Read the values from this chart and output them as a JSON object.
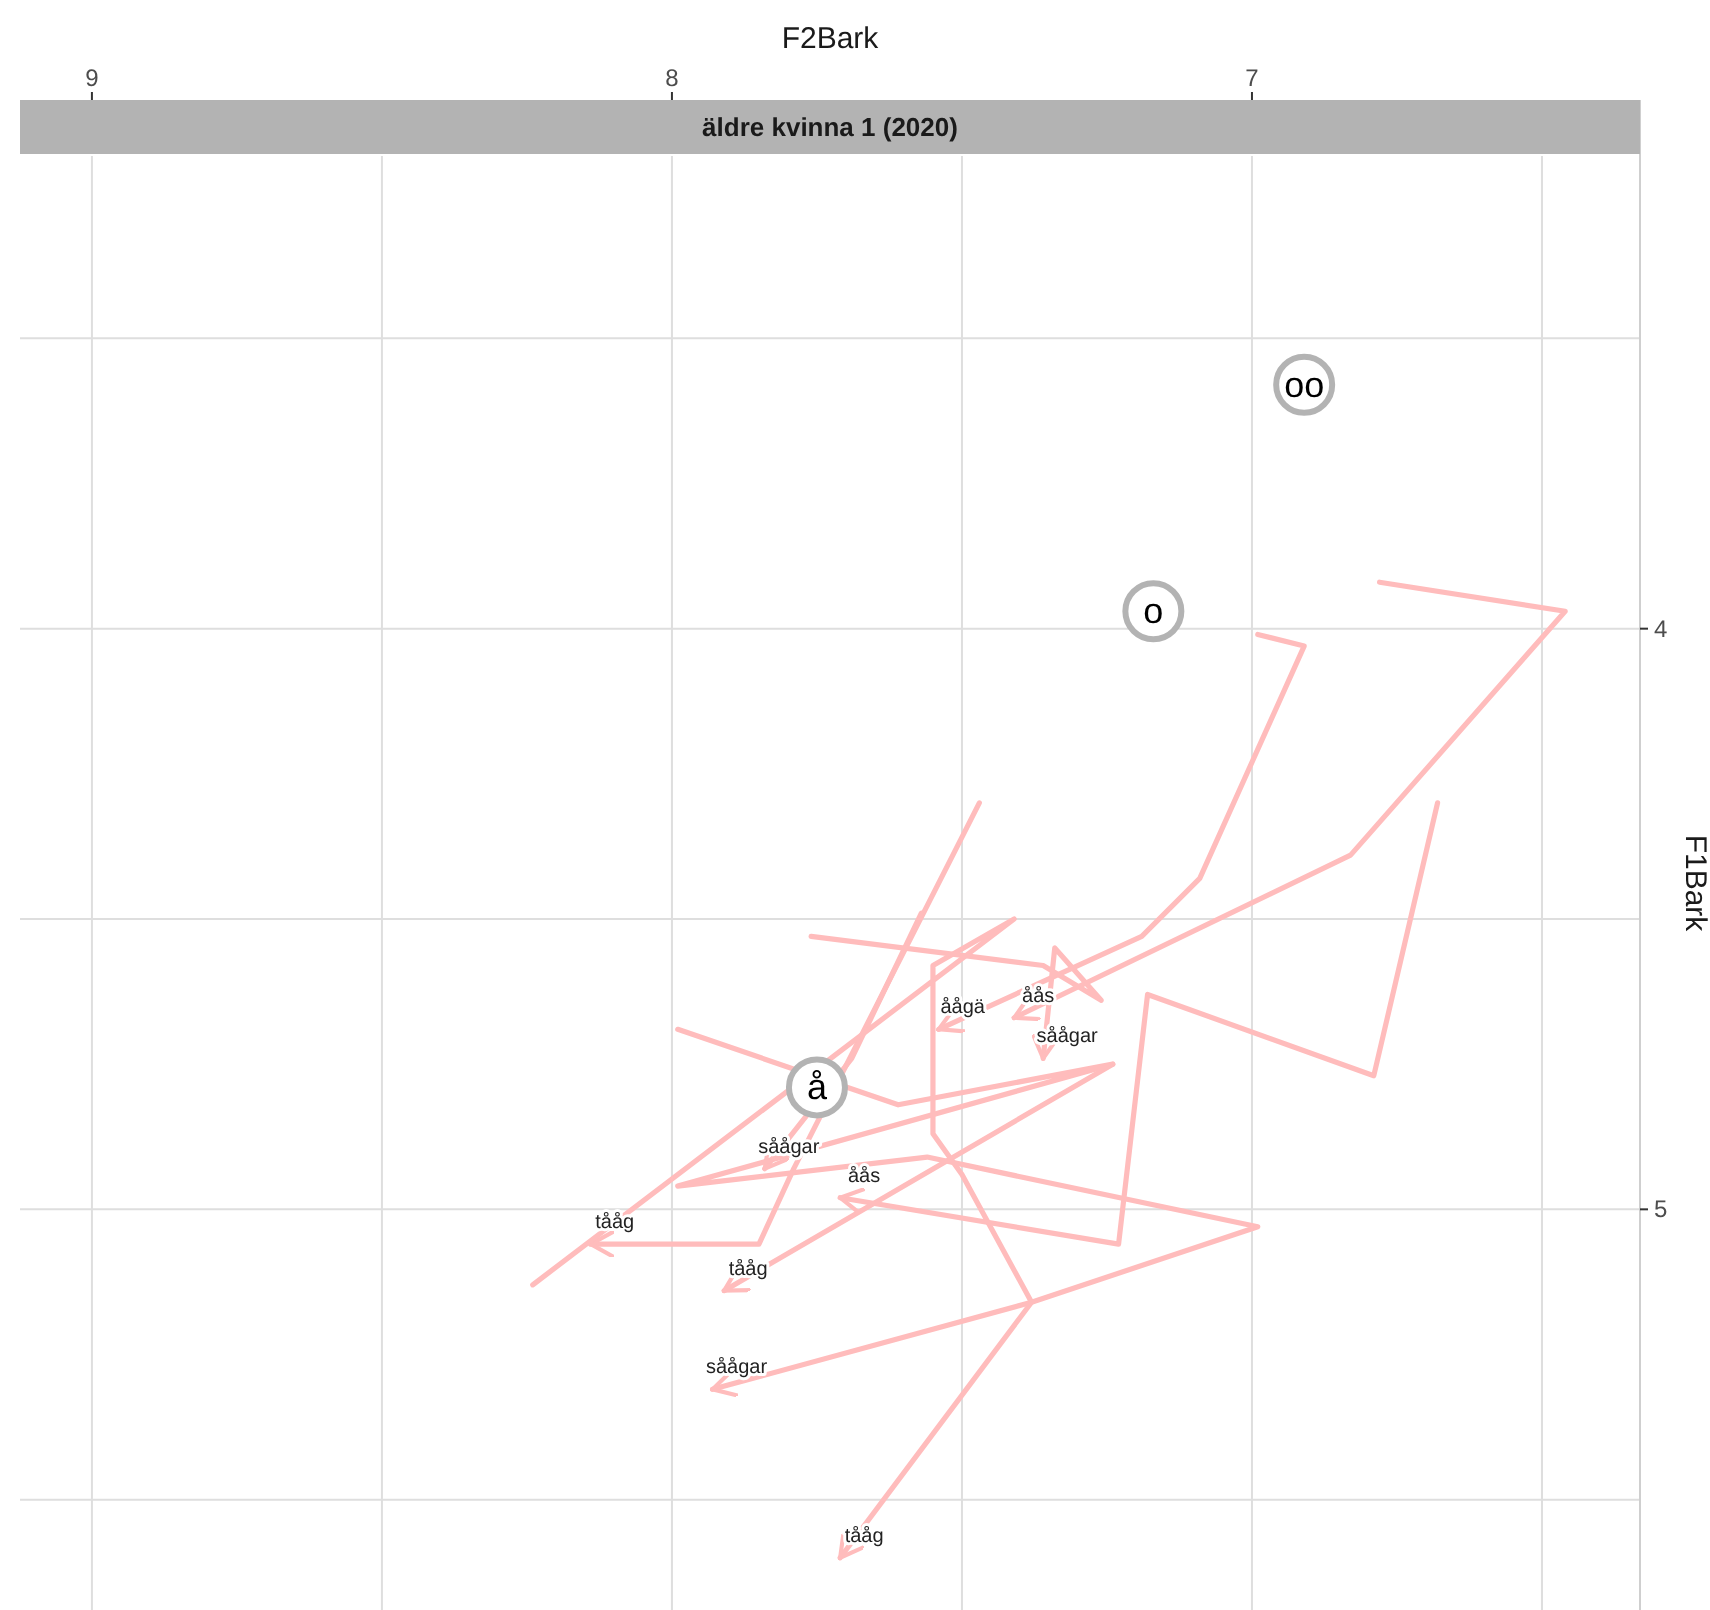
{
  "chart_data": {
    "type": "line",
    "title": "äldre kvinna 1 (2020)",
    "xlabel": "F2Bark",
    "ylabel": "F1Bark",
    "xlim": [
      9.124,
      6.331
    ],
    "ylim": [
      5.69,
      3.186
    ],
    "xticks": [
      9,
      {
        "value": 8.5,
        "label": null
      },
      8,
      {
        "value": 7.5,
        "label": null
      },
      7,
      {
        "value": 6.5,
        "label": null
      }
    ],
    "yticks": [
      {
        "value": 3.5,
        "label": null
      },
      4,
      {
        "value": 4.5,
        "label": null
      },
      5,
      {
        "value": 5.5,
        "label": null
      }
    ],
    "grid": true,
    "marker": "none",
    "line_style": "solid",
    "series": [
      {
        "name": "tååg",
        "color": "#ffbcbc",
        "x": [
          7.47,
          7.79,
          7.85,
          8.14
        ],
        "values": [
          4.3,
          4.93,
          5.06,
          5.06
        ]
      },
      {
        "name": "såågar",
        "color": "#ffbcbc",
        "x": [
          7.57,
          7.69,
          7.84
        ],
        "values": [
          4.49,
          4.74,
          4.93
        ]
      },
      {
        "name": "tååg",
        "color": "#ffbcbc",
        "x": [
          7.24,
          7.91
        ],
        "values": [
          4.75,
          5.14
        ]
      },
      {
        "name": "tååg",
        "color": "#ffbcbc",
        "x": [
          8.24,
          7.41,
          7.55,
          7.55,
          7.5,
          7.38,
          7.71
        ],
        "values": [
          5.13,
          4.5,
          4.58,
          4.87,
          4.94,
          5.16,
          5.6
        ]
      },
      {
        "name": "såågar",
        "color": "#ffbcbc",
        "x": [
          7.99,
          7.61,
          7.24,
          7.99,
          7.56,
          6.99,
          7.38,
          7.93
        ],
        "values": [
          4.69,
          4.82,
          4.75,
          4.96,
          4.91,
          5.03,
          5.16,
          5.31
        ]
      },
      {
        "name": "åås",
        "color": "#ffbcbc",
        "x": [
          6.78,
          6.46,
          6.83,
          7.41
        ],
        "values": [
          3.92,
          3.97,
          4.39,
          4.67
        ]
      },
      {
        "name": "åågä",
        "color": "#ffbcbc",
        "x": [
          6.99,
          6.91,
          7.09,
          7.19,
          7.54
        ],
        "values": [
          4.01,
          4.03,
          4.43,
          4.53,
          4.69
        ]
      },
      {
        "name": "åås",
        "color": "#ffbcbc",
        "x": [
          6.68,
          6.79,
          7.18,
          7.23,
          7.71
        ],
        "values": [
          4.3,
          4.77,
          4.63,
          5.06,
          4.98
        ]
      },
      {
        "name": "såågar",
        "color": "#ffbcbc",
        "x": [
          7.76,
          7.36,
          7.26,
          7.34,
          7.36
        ],
        "values": [
          4.53,
          4.58,
          4.64,
          4.55,
          4.74
        ]
      },
      {
        "type": "scatter",
        "marker": "circle",
        "name": "oo",
        "color": "#b3b3b3",
        "x": [
          6.91
        ],
        "values": [
          3.58
        ]
      },
      {
        "type": "scatter",
        "marker": "circle",
        "name": "o",
        "color": "#b3b3b3",
        "x": [
          7.17
        ],
        "values": [
          3.97
        ]
      },
      {
        "type": "scatter",
        "marker": "circle",
        "name": "å",
        "color": "#b3b3b3",
        "x": [
          7.75
        ],
        "values": [
          4.79
        ]
      }
    ]
  }
}
